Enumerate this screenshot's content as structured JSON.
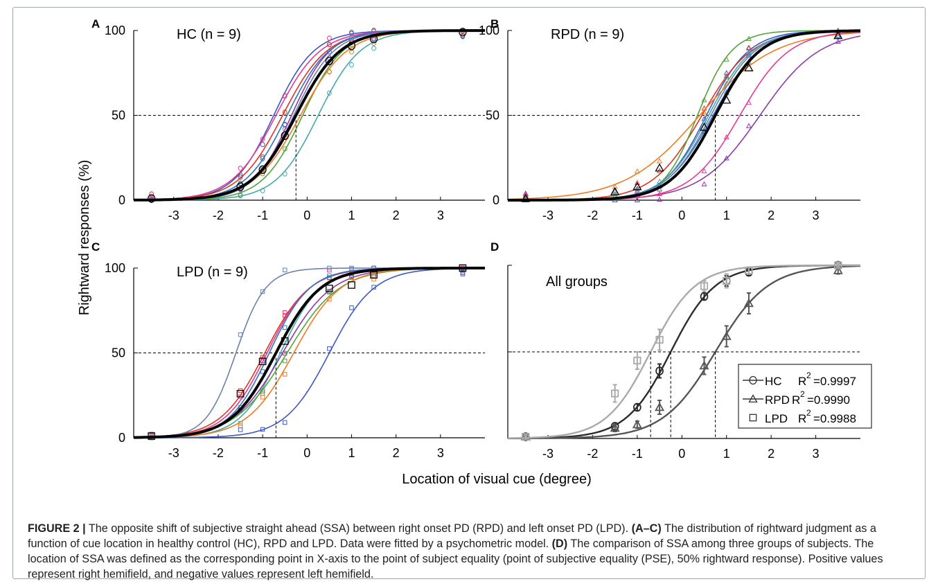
{
  "y_axis_label": "Rightward responses (%)",
  "x_axis_label": "Location of visual cue (degree)",
  "caption": {
    "figure_label": "FIGURE 2 |",
    "s1": " The opposite shift of subjective straight ahead (SSA) between right onset PD (RPD) and left onset PD (LPD). ",
    "b1": "(A–C)",
    "s2": " The distribution of rightward judgment as a function of cue location in healthy control (HC), RPD and LPD. Data were fitted by a psychometric model. ",
    "b2": "(D)",
    "s3": " The comparison of SSA among three groups of subjects. The location of SSA was defined as the corresponding point in X-axis to the point of subject equality (point of subjective equality (PSE), 50% rightward response). Positive values represent right hemifield, and negative values represent left hemifield."
  },
  "colors": {
    "subject_palette": [
      "#3b57c7",
      "#e0331f",
      "#43a8ad",
      "#8e3aa6",
      "#54a23c",
      "#f07a1f",
      "#e23b91",
      "#2f74c0",
      "#6b7fb0"
    ],
    "group_mean": "#000000",
    "hc": "#2b2b2b",
    "rpd": "#555555",
    "lpd": "#a9a9a9"
  },
  "chart_data": [
    {
      "panel": "A",
      "type": "scatter",
      "title": "HC (n = 9)",
      "marker": "circle",
      "x_ticks": [
        -3,
        -2,
        -1,
        0,
        1,
        2,
        3
      ],
      "y_ticks": [
        0,
        50,
        100
      ],
      "xlim": [
        -3.9,
        4.0
      ],
      "ylim": [
        0,
        100
      ],
      "x_values": [
        -3.5,
        -1.5,
        -1,
        -0.5,
        0.5,
        1,
        1.5,
        3.5
      ],
      "reference_line_y": 50,
      "pse": -0.25,
      "subject_curves_pse": [
        -0.75,
        -0.55,
        0.25,
        -0.35,
        -0.1,
        -0.15,
        -0.7,
        -0.45,
        -0.3
      ],
      "mean_points": [
        1,
        8,
        18,
        38,
        82,
        91,
        95,
        99
      ],
      "grid": false
    },
    {
      "panel": "B",
      "type": "scatter",
      "title": "RPD (n = 9)",
      "marker": "triangle",
      "x_ticks": [
        -3,
        -2,
        -1,
        0,
        1,
        2,
        3
      ],
      "y_ticks": [
        0,
        50,
        100
      ],
      "xlim": [
        -3.9,
        4.0
      ],
      "ylim": [
        0,
        100
      ],
      "x_values": [
        -3.5,
        -1.5,
        -1,
        -0.5,
        0.5,
        1,
        1.5,
        3.5
      ],
      "reference_line_y": 50,
      "pse": 0.75,
      "subject_curves_pse": [
        0.55,
        0.45,
        0.6,
        1.75,
        0.35,
        0.4,
        1.3,
        0.7,
        0.65
      ],
      "mean_points": [
        1,
        5,
        8,
        19,
        43,
        59,
        78,
        97
      ],
      "grid": false
    },
    {
      "panel": "C",
      "type": "scatter",
      "title": "LPD (n = 9)",
      "marker": "square",
      "x_ticks": [
        -3,
        -2,
        -1,
        0,
        1,
        2,
        3
      ],
      "y_ticks": [
        0,
        50,
        100
      ],
      "xlim": [
        -3.9,
        4.0
      ],
      "ylim": [
        0,
        100
      ],
      "x_values": [
        -3.5,
        -1.5,
        -1,
        -0.5,
        0.5,
        1,
        1.5,
        3.5
      ],
      "reference_line_y": 50,
      "pse": -0.7,
      "subject_curves_pse": [
        0.5,
        -0.95,
        -0.6,
        -0.55,
        -0.45,
        -0.3,
        -0.9,
        -0.85,
        -1.6
      ],
      "mean_points": [
        1,
        26,
        45,
        57,
        88,
        90,
        96,
        100
      ],
      "grid": false
    },
    {
      "panel": "D",
      "type": "line",
      "title": "All groups",
      "x_ticks": [
        -3,
        -2,
        -1,
        0,
        1,
        2,
        3
      ],
      "y_ticks": [],
      "xlim": [
        -3.9,
        4.0
      ],
      "ylim": [
        0,
        100
      ],
      "x_values": [
        -3.5,
        -1.5,
        -1,
        -0.5,
        0.5,
        1,
        1.5,
        3.5
      ],
      "reference_line_y": 50,
      "series": [
        {
          "name": "HC",
          "r2_text": "=0.9997",
          "marker": "circle",
          "pse": -0.25,
          "values": [
            1,
            7,
            18,
            39,
            82,
            91,
            96,
            100
          ],
          "errors": [
            1,
            2,
            2,
            4,
            2,
            3,
            2,
            1
          ]
        },
        {
          "name": "RPD",
          "r2_text": "=0.9990",
          "marker": "triangle",
          "pse": 0.75,
          "values": [
            1,
            6,
            8,
            18,
            42,
            59,
            78,
            97
          ],
          "errors": [
            1,
            2,
            2,
            4,
            5,
            6,
            6,
            2
          ]
        },
        {
          "name": "LPD",
          "r2_text": "=0.9988",
          "marker": "square",
          "pse": -0.7,
          "values": [
            1,
            26,
            45,
            57,
            88,
            91,
            97,
            100
          ],
          "errors": [
            1,
            5,
            5,
            6,
            3,
            4,
            2,
            1
          ]
        }
      ],
      "legend_r_label": "R",
      "legend_r_sup": "2",
      "legend_position": "bottom-right",
      "grid": false
    }
  ]
}
